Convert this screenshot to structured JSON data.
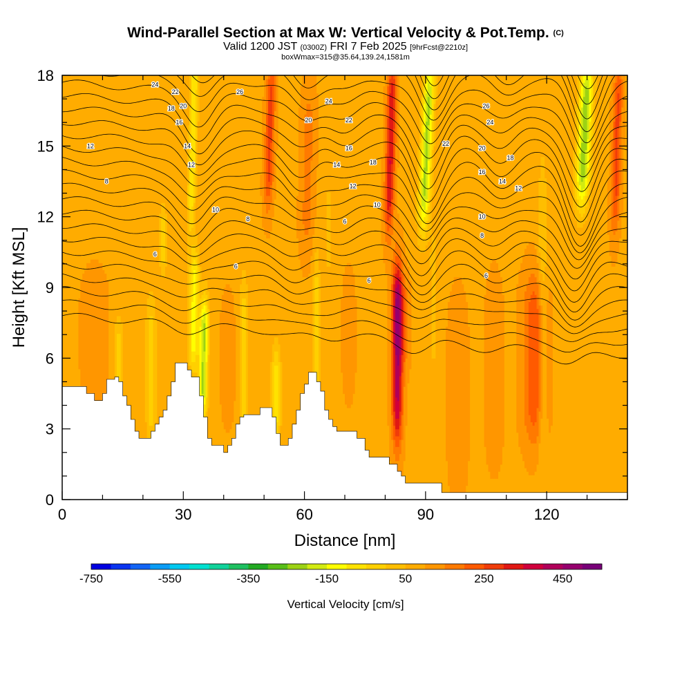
{
  "chart_data": {
    "type": "contour",
    "title": "Wind-Parallel Section at Max W: Vertical Velocity & Pot.Temp.",
    "title_mark": "(C)",
    "subtitle_main": "Valid 1200 JST",
    "subtitle_utc": "(0300Z)",
    "subtitle_date": "FRI 7 Feb 2025",
    "subtitle_fcst": "[9hrFcst@2210z]",
    "subtitle2": "boxWmax=315@35.64,139.24,1581m",
    "xlabel": "Distance [nm]",
    "ylabel": "Height [Kft MSL]",
    "xlim": [
      0,
      140
    ],
    "ylim": [
      0,
      18
    ],
    "x_ticks": [
      "0",
      "30",
      "60",
      "90",
      "120"
    ],
    "x_tick_values": [
      0,
      30,
      60,
      90,
      120
    ],
    "y_ticks": [
      "0",
      "3",
      "6",
      "9",
      "12",
      "15",
      "18"
    ],
    "y_tick_values": [
      0,
      3,
      6,
      9,
      12,
      15,
      18
    ],
    "colorbar": {
      "title": "Vertical Velocity [cm/s]",
      "labels": [
        "-750",
        "-550",
        "-350",
        "-150",
        "50",
        "250",
        "450"
      ],
      "label_values": [
        -750,
        -550,
        -350,
        -150,
        50,
        250,
        450
      ],
      "min": -750,
      "max": 550,
      "colors": [
        "#0000e0",
        "#0a34f0",
        "#1264f5",
        "#0a9cf5",
        "#00c8f0",
        "#00e0d0",
        "#10d29a",
        "#1ec060",
        "#22aa22",
        "#58be18",
        "#9cd214",
        "#d2ea12",
        "#ffff00",
        "#ffe200",
        "#ffd000",
        "#ffbe00",
        "#ffac00",
        "#ff9600",
        "#ff7a00",
        "#ff5a00",
        "#f03c0a",
        "#e01814",
        "#d0003c",
        "#b0005a",
        "#96006e",
        "#780078"
      ]
    },
    "terrain_kft": [
      [
        0,
        4.8
      ],
      [
        6,
        4.8
      ],
      [
        6,
        4.5
      ],
      [
        8,
        4.5
      ],
      [
        8,
        4.2
      ],
      [
        10,
        4.2
      ],
      [
        10,
        4.5
      ],
      [
        11,
        4.5
      ],
      [
        11,
        5.1
      ],
      [
        13,
        5.1
      ],
      [
        13,
        5.2
      ],
      [
        14,
        5.2
      ],
      [
        14,
        5.0
      ],
      [
        15,
        5.0
      ],
      [
        15,
        4.4
      ],
      [
        16,
        4.4
      ],
      [
        16,
        4.0
      ],
      [
        17,
        4.0
      ],
      [
        17,
        3.4
      ],
      [
        18,
        3.4
      ],
      [
        18,
        2.9
      ],
      [
        19,
        2.9
      ],
      [
        19,
        2.6
      ],
      [
        22,
        2.6
      ],
      [
        22,
        2.9
      ],
      [
        23,
        2.9
      ],
      [
        23,
        3.2
      ],
      [
        24,
        3.2
      ],
      [
        24,
        3.5
      ],
      [
        25,
        3.5
      ],
      [
        25,
        3.8
      ],
      [
        26,
        3.8
      ],
      [
        26,
        4.4
      ],
      [
        27,
        4.4
      ],
      [
        27,
        5.0
      ],
      [
        28,
        5.0
      ],
      [
        28,
        5.8
      ],
      [
        31,
        5.8
      ],
      [
        31,
        5.5
      ],
      [
        32,
        5.5
      ],
      [
        32,
        5.2
      ],
      [
        34,
        5.2
      ],
      [
        34,
        4.4
      ],
      [
        35,
        4.4
      ],
      [
        35,
        3.5
      ],
      [
        36,
        3.5
      ],
      [
        36,
        2.6
      ],
      [
        37,
        2.6
      ],
      [
        37,
        2.3
      ],
      [
        40,
        2.3
      ],
      [
        40,
        2.0
      ],
      [
        41,
        2.0
      ],
      [
        41,
        2.3
      ],
      [
        42,
        2.3
      ],
      [
        42,
        2.6
      ],
      [
        43,
        2.6
      ],
      [
        43,
        3.2
      ],
      [
        44,
        3.2
      ],
      [
        44,
        3.5
      ],
      [
        45,
        3.5
      ],
      [
        45,
        3.6
      ],
      [
        49,
        3.6
      ],
      [
        49,
        3.9
      ],
      [
        52,
        3.9
      ],
      [
        52,
        3.5
      ],
      [
        53,
        3.5
      ],
      [
        53,
        2.8
      ],
      [
        54,
        2.8
      ],
      [
        54,
        2.3
      ],
      [
        56,
        2.3
      ],
      [
        56,
        2.6
      ],
      [
        57,
        2.6
      ],
      [
        57,
        3.2
      ],
      [
        58,
        3.2
      ],
      [
        58,
        3.8
      ],
      [
        59,
        3.8
      ],
      [
        59,
        4.5
      ],
      [
        60,
        4.5
      ],
      [
        60,
        4.9
      ],
      [
        61,
        4.9
      ],
      [
        61,
        5.4
      ],
      [
        63,
        5.4
      ],
      [
        63,
        5.0
      ],
      [
        64,
        5.0
      ],
      [
        64,
        4.6
      ],
      [
        65,
        4.6
      ],
      [
        65,
        3.8
      ],
      [
        66,
        3.8
      ],
      [
        66,
        3.4
      ],
      [
        67,
        3.4
      ],
      [
        67,
        3.1
      ],
      [
        68,
        3.1
      ],
      [
        68,
        2.9
      ],
      [
        73,
        2.9
      ],
      [
        73,
        2.6
      ],
      [
        75,
        2.6
      ],
      [
        75,
        2.1
      ],
      [
        76,
        2.1
      ],
      [
        76,
        1.8
      ],
      [
        81,
        1.8
      ],
      [
        81,
        1.5
      ],
      [
        83,
        1.5
      ],
      [
        83,
        1.2
      ],
      [
        84,
        1.2
      ],
      [
        84,
        1.0
      ],
      [
        85,
        1.0
      ],
      [
        85,
        0.7
      ],
      [
        94,
        0.7
      ],
      [
        94,
        0.3
      ],
      [
        140,
        0.3
      ]
    ],
    "ridge_x": [
      31,
      57,
      67,
      88,
      106,
      126
    ],
    "ridge_amp": [
      1.4,
      1.0,
      0.6,
      2.2,
      0.9,
      2.6
    ],
    "contour_labels": [
      {
        "t": "24",
        "x": 23,
        "y": 17.6
      },
      {
        "t": "22",
        "x": 28,
        "y": 17.3
      },
      {
        "t": "26",
        "x": 44,
        "y": 17.3
      },
      {
        "t": "20",
        "x": 30,
        "y": 16.7
      },
      {
        "t": "18",
        "x": 27,
        "y": 16.6
      },
      {
        "t": "16",
        "x": 29,
        "y": 16.0
      },
      {
        "t": "14",
        "x": 31,
        "y": 15.0
      },
      {
        "t": "12",
        "x": 32,
        "y": 14.2
      },
      {
        "t": "12",
        "x": 7,
        "y": 15.0
      },
      {
        "t": "8",
        "x": 11,
        "y": 13.5
      },
      {
        "t": "10",
        "x": 38,
        "y": 12.3
      },
      {
        "t": "8",
        "x": 46,
        "y": 11.9
      },
      {
        "t": "6",
        "x": 23,
        "y": 10.4
      },
      {
        "t": "6",
        "x": 43,
        "y": 9.9
      },
      {
        "t": "24",
        "x": 66,
        "y": 16.9
      },
      {
        "t": "20",
        "x": 61,
        "y": 16.1
      },
      {
        "t": "22",
        "x": 71,
        "y": 16.1
      },
      {
        "t": "16",
        "x": 71,
        "y": 14.9
      },
      {
        "t": "14",
        "x": 68,
        "y": 14.2
      },
      {
        "t": "18",
        "x": 77,
        "y": 14.3
      },
      {
        "t": "12",
        "x": 72,
        "y": 13.3
      },
      {
        "t": "10",
        "x": 78,
        "y": 12.5
      },
      {
        "t": "6",
        "x": 70,
        "y": 11.8
      },
      {
        "t": "6",
        "x": 76,
        "y": 9.3
      },
      {
        "t": "26",
        "x": 105,
        "y": 16.7
      },
      {
        "t": "24",
        "x": 106,
        "y": 16.0
      },
      {
        "t": "22",
        "x": 95,
        "y": 15.1
      },
      {
        "t": "20",
        "x": 104,
        "y": 14.9
      },
      {
        "t": "18",
        "x": 111,
        "y": 14.5
      },
      {
        "t": "16",
        "x": 104,
        "y": 13.9
      },
      {
        "t": "14",
        "x": 109,
        "y": 13.5
      },
      {
        "t": "12",
        "x": 113,
        "y": 13.2
      },
      {
        "t": "10",
        "x": 104,
        "y": 12.0
      },
      {
        "t": "8",
        "x": 104,
        "y": 11.2
      },
      {
        "t": "6",
        "x": 105,
        "y": 9.5
      }
    ]
  }
}
